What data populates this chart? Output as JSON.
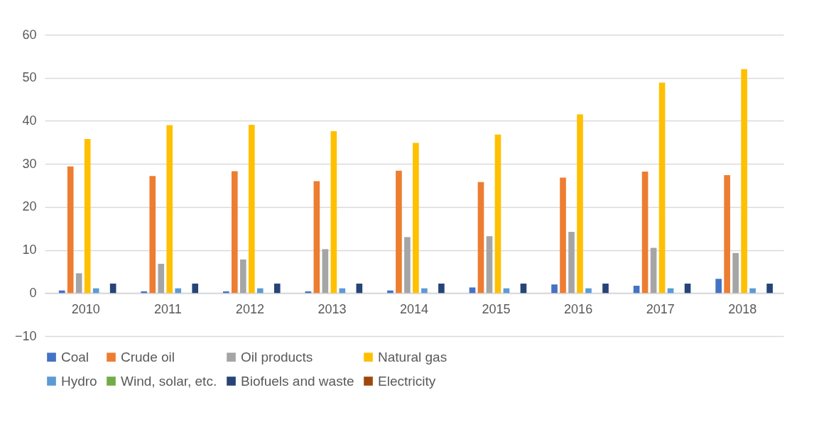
{
  "chart_data": {
    "type": "bar",
    "categories": [
      "2010",
      "2011",
      "2012",
      "2013",
      "2014",
      "2015",
      "2016",
      "2017",
      "2018"
    ],
    "series": [
      {
        "name": "Coal",
        "color": "#4472c4",
        "values": [
          0.6,
          0.4,
          0.4,
          0.4,
          0.6,
          1.3,
          2.0,
          1.7,
          3.3
        ]
      },
      {
        "name": "Crude oil",
        "color": "#ed7d31",
        "values": [
          29.4,
          27.2,
          28.3,
          26.0,
          28.4,
          25.8,
          26.8,
          28.2,
          27.4
        ]
      },
      {
        "name": "Oil products",
        "color": "#a5a5a5",
        "values": [
          4.6,
          6.8,
          7.8,
          10.2,
          13.0,
          13.2,
          14.2,
          10.5,
          9.3
        ]
      },
      {
        "name": "Natural gas",
        "color": "#ffc000",
        "values": [
          35.8,
          39.0,
          39.1,
          37.6,
          34.9,
          36.8,
          41.5,
          48.9,
          52.0
        ]
      },
      {
        "name": "Hydro",
        "color": "#5b9bd5",
        "values": [
          1.1,
          1.1,
          1.1,
          1.1,
          1.1,
          1.1,
          1.1,
          1.1,
          1.1
        ]
      },
      {
        "name": "Wind, solar, etc.",
        "color": "#70ad47",
        "values": [
          0,
          null,
          0,
          0,
          0,
          0,
          null,
          null,
          null
        ]
      },
      {
        "name": "Biofuels and waste",
        "color": "#264478",
        "values": [
          2.2,
          2.2,
          2.2,
          2.2,
          2.2,
          2.2,
          2.2,
          2.2,
          2.2
        ]
      },
      {
        "name": "Electricity",
        "color": "#9e480e",
        "values": [
          0,
          0,
          0,
          0,
          0,
          0,
          0,
          0,
          0
        ]
      }
    ],
    "ylim": [
      -10,
      60
    ],
    "yticks": [
      -10,
      0,
      10,
      20,
      30,
      40,
      50,
      60
    ],
    "grid": "y",
    "legend": "bottom"
  }
}
